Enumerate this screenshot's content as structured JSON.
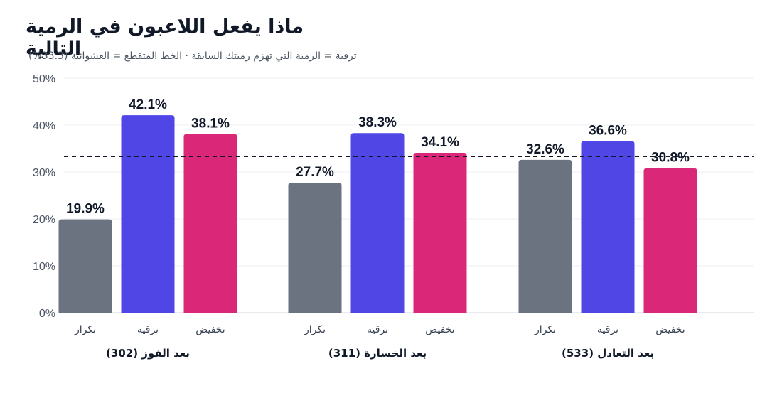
{
  "chart_data": {
    "type": "bar",
    "title": "ماذا يفعل اللاعبون في الرمية التالية",
    "subtitle": "ترقية = الرمية التي تهزم رميتك السابقة · الخط المتقطع = العشوائية (33.3%)",
    "groups": [
      "بعد الفوز (302)",
      "بعد الخسارة (311)",
      "بعد التعادل (533)"
    ],
    "categories": [
      "تكرار",
      "ترقية",
      "تخفيض"
    ],
    "series": [
      {
        "name": "تكرار",
        "values": [
          19.9,
          27.7,
          32.6
        ],
        "color": "#6b7280"
      },
      {
        "name": "ترقية",
        "values": [
          42.1,
          38.3,
          36.6
        ],
        "color": "#4f46e5"
      },
      {
        "name": "تخفيض",
        "values": [
          38.1,
          34.1,
          30.8
        ],
        "color": "#db2777"
      }
    ],
    "value_labels": [
      [
        "19.9%",
        "42.1%",
        "38.1%"
      ],
      [
        "27.7%",
        "38.3%",
        "34.1%"
      ],
      [
        "32.6%",
        "36.6%",
        "30.8%"
      ]
    ],
    "y_ticks": [
      "0%",
      "10%",
      "20%",
      "30%",
      "40%",
      "50%"
    ],
    "ylim": [
      0,
      50
    ],
    "reference_line": 33.3,
    "grid": true,
    "legend": "none"
  }
}
